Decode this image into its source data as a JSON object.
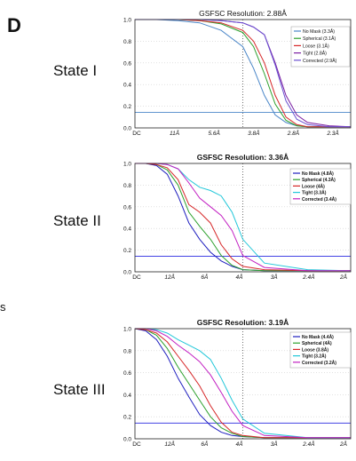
{
  "panel_letter": "D",
  "side_text": "s",
  "state_labels": [
    "State I",
    "State II",
    "State III"
  ],
  "colors": {
    "no_mask": "#4a86c8",
    "spherical": "#2ca02c",
    "loose": "#d62728",
    "tight": "#7b1fa2",
    "corrected": "#6a4fd1"
  },
  "chart_data": [
    {
      "type": "line",
      "title": "GSFSC Resolution: 2.88Å",
      "x_ticks": [
        "DC",
        "11Å",
        "5.6Å",
        "3.8Å",
        "2.8Å",
        "2.3Å"
      ],
      "y_ticks": [
        "0.0",
        "0.2",
        "0.4",
        "0.6",
        "0.8",
        "1.0"
      ],
      "ylim": [
        0,
        1
      ],
      "threshold": 0.143,
      "grid": true,
      "legend_position": "top-right",
      "series": [
        {
          "name": "No Mask (3.3Å)",
          "color": "#4a86c8",
          "x": [
            0,
            0.1,
            0.2,
            0.3,
            0.4,
            0.5,
            0.55,
            0.6,
            0.65,
            0.7,
            0.75,
            0.8,
            0.9,
            1.0
          ],
          "y": [
            1,
            1,
            0.99,
            0.97,
            0.9,
            0.75,
            0.55,
            0.3,
            0.12,
            0.05,
            0.02,
            0.01,
            0.01,
            0.01
          ]
        },
        {
          "name": "Spherical (3.1Å)",
          "color": "#2ca02c",
          "x": [
            0,
            0.1,
            0.2,
            0.3,
            0.4,
            0.5,
            0.55,
            0.6,
            0.65,
            0.7,
            0.75,
            0.8,
            0.9,
            1.0
          ],
          "y": [
            1,
            1,
            1,
            0.99,
            0.96,
            0.88,
            0.75,
            0.5,
            0.22,
            0.07,
            0.02,
            0.01,
            0.01,
            0.01
          ]
        },
        {
          "name": "Loose (3.1Å)",
          "color": "#d62728",
          "x": [
            0,
            0.1,
            0.2,
            0.3,
            0.4,
            0.5,
            0.55,
            0.6,
            0.65,
            0.7,
            0.75,
            0.8,
            0.9,
            1.0
          ],
          "y": [
            1,
            1,
            1,
            0.99,
            0.97,
            0.9,
            0.8,
            0.6,
            0.3,
            0.1,
            0.03,
            0.01,
            0.01,
            0.01
          ]
        },
        {
          "name": "Tight (2.8Å)",
          "color": "#7b1fa2",
          "x": [
            0,
            0.1,
            0.2,
            0.3,
            0.4,
            0.5,
            0.55,
            0.6,
            0.65,
            0.7,
            0.75,
            0.8,
            0.9,
            1.0
          ],
          "y": [
            1,
            1,
            1,
            1,
            0.99,
            0.97,
            0.93,
            0.86,
            0.6,
            0.3,
            0.12,
            0.05,
            0.02,
            0.01
          ]
        },
        {
          "name": "Corrected (2.9Å)",
          "color": "#6a4fd1",
          "x": [
            0,
            0.1,
            0.2,
            0.3,
            0.4,
            0.5,
            0.55,
            0.6,
            0.65,
            0.7,
            0.75,
            0.8,
            0.9,
            1.0
          ],
          "y": [
            1,
            1,
            1,
            1,
            0.99,
            0.97,
            0.93,
            0.86,
            0.58,
            0.25,
            0.08,
            0.03,
            0.01,
            0.01
          ]
        }
      ]
    },
    {
      "type": "line",
      "title": "GSFSC Resolution: 3.36Å",
      "x_ticks": [
        "DC",
        "12Å",
        "6Å",
        "4Å",
        "3Å",
        "2.4Å",
        "2Å"
      ],
      "y_ticks": [
        "0.0",
        "0.2",
        "0.4",
        "0.6",
        "0.8",
        "1.0"
      ],
      "ylim": [
        0,
        1
      ],
      "threshold": 0.143,
      "grid": true,
      "legend_position": "top-right",
      "series": [
        {
          "name": "No Mask (4.8Å)",
          "color": "#1f1fbf",
          "x": [
            0,
            0.05,
            0.1,
            0.15,
            0.2,
            0.25,
            0.3,
            0.35,
            0.4,
            0.45,
            0.5,
            0.6,
            0.8,
            1.0
          ],
          "y": [
            1,
            1,
            0.98,
            0.9,
            0.7,
            0.45,
            0.3,
            0.18,
            0.1,
            0.05,
            0.02,
            0.01,
            0.01,
            0.01
          ]
        },
        {
          "name": "Spherical (4.3Å)",
          "color": "#2ca02c",
          "x": [
            0,
            0.05,
            0.1,
            0.15,
            0.2,
            0.25,
            0.3,
            0.35,
            0.4,
            0.45,
            0.5,
            0.6,
            0.8,
            1.0
          ],
          "y": [
            1,
            1,
            0.99,
            0.94,
            0.8,
            0.55,
            0.42,
            0.3,
            0.15,
            0.06,
            0.02,
            0.01,
            0.01,
            0.01
          ]
        },
        {
          "name": "Loose (4Å)",
          "color": "#d62728",
          "x": [
            0,
            0.05,
            0.1,
            0.15,
            0.2,
            0.25,
            0.3,
            0.35,
            0.4,
            0.45,
            0.5,
            0.6,
            0.8,
            1.0
          ],
          "y": [
            1,
            1,
            0.99,
            0.96,
            0.85,
            0.62,
            0.55,
            0.45,
            0.25,
            0.12,
            0.05,
            0.02,
            0.01,
            0.01
          ]
        },
        {
          "name": "Tight (3.3Å)",
          "color": "#22c7d9",
          "x": [
            0,
            0.05,
            0.1,
            0.15,
            0.2,
            0.25,
            0.3,
            0.35,
            0.4,
            0.45,
            0.5,
            0.6,
            0.8,
            1.0
          ],
          "y": [
            1,
            1,
            1,
            0.99,
            0.95,
            0.85,
            0.78,
            0.75,
            0.7,
            0.55,
            0.3,
            0.08,
            0.02,
            0.01
          ]
        },
        {
          "name": "Corrected (3.4Å)",
          "color": "#c21fc2",
          "x": [
            0,
            0.05,
            0.1,
            0.15,
            0.2,
            0.25,
            0.3,
            0.35,
            0.4,
            0.45,
            0.5,
            0.6,
            0.8,
            1.0
          ],
          "y": [
            1,
            1,
            1,
            0.99,
            0.95,
            0.82,
            0.68,
            0.6,
            0.52,
            0.38,
            0.15,
            0.04,
            0.01,
            0.01
          ]
        }
      ]
    },
    {
      "type": "line",
      "title": "GSFSC Resolution: 3.19Å",
      "x_ticks": [
        "DC",
        "12Å",
        "6Å",
        "4Å",
        "3Å",
        "2.4Å",
        "2Å"
      ],
      "y_ticks": [
        "0.0",
        "0.2",
        "0.4",
        "0.6",
        "0.8",
        "1.0"
      ],
      "ylim": [
        0,
        1
      ],
      "threshold": 0.143,
      "grid": true,
      "legend_position": "top-right",
      "series": [
        {
          "name": "No Mask (4.4Å)",
          "color": "#1f1fbf",
          "x": [
            0,
            0.05,
            0.1,
            0.15,
            0.2,
            0.25,
            0.3,
            0.35,
            0.4,
            0.45,
            0.5,
            0.6,
            0.8,
            1.0
          ],
          "y": [
            1,
            0.98,
            0.9,
            0.75,
            0.55,
            0.38,
            0.22,
            0.12,
            0.06,
            0.03,
            0.02,
            0.01,
            0.01,
            0.01
          ]
        },
        {
          "name": "Spherical (4Å)",
          "color": "#2ca02c",
          "x": [
            0,
            0.05,
            0.1,
            0.15,
            0.2,
            0.25,
            0.3,
            0.35,
            0.4,
            0.45,
            0.5,
            0.6,
            0.8,
            1.0
          ],
          "y": [
            1,
            0.99,
            0.94,
            0.82,
            0.65,
            0.5,
            0.35,
            0.2,
            0.1,
            0.05,
            0.02,
            0.01,
            0.01,
            0.01
          ]
        },
        {
          "name": "Loose (3.8Å)",
          "color": "#d62728",
          "x": [
            0,
            0.05,
            0.1,
            0.15,
            0.2,
            0.25,
            0.3,
            0.35,
            0.4,
            0.45,
            0.5,
            0.6,
            0.8,
            1.0
          ],
          "y": [
            1,
            0.99,
            0.96,
            0.88,
            0.75,
            0.62,
            0.48,
            0.3,
            0.15,
            0.06,
            0.03,
            0.01,
            0.01,
            0.01
          ]
        },
        {
          "name": "Tight (3.2Å)",
          "color": "#22c7d9",
          "x": [
            0,
            0.05,
            0.1,
            0.15,
            0.2,
            0.25,
            0.3,
            0.35,
            0.4,
            0.45,
            0.5,
            0.6,
            0.8,
            1.0
          ],
          "y": [
            1,
            1,
            0.99,
            0.96,
            0.9,
            0.85,
            0.8,
            0.72,
            0.55,
            0.35,
            0.18,
            0.05,
            0.01,
            0.01
          ]
        },
        {
          "name": "Corrected (3.2Å)",
          "color": "#c21fc2",
          "x": [
            0,
            0.05,
            0.1,
            0.15,
            0.2,
            0.25,
            0.3,
            0.35,
            0.4,
            0.45,
            0.5,
            0.6,
            0.8,
            1.0
          ],
          "y": [
            1,
            1,
            0.98,
            0.93,
            0.85,
            0.78,
            0.7,
            0.58,
            0.42,
            0.25,
            0.12,
            0.03,
            0.01,
            0.01
          ]
        }
      ]
    }
  ]
}
